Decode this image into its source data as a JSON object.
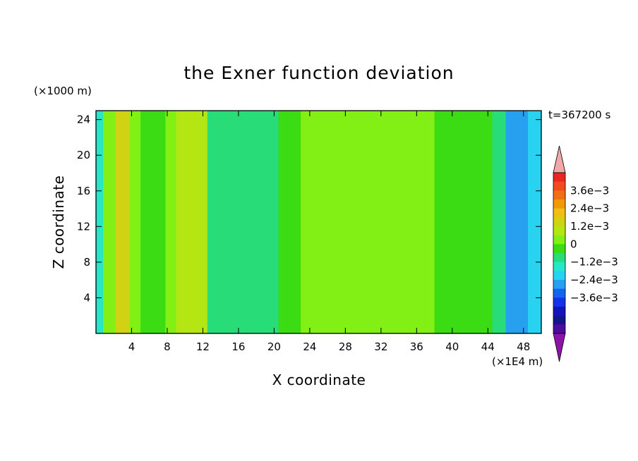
{
  "chart_data": {
    "type": "heatmap",
    "title": "the Exner function deviation",
    "time_label": "t=367200 s",
    "xlabel": "X coordinate",
    "ylabel": "Z coordinate",
    "x_unit": "(×1E4 m)",
    "y_unit": "(×1000 m)",
    "xlim": [
      0,
      50
    ],
    "ylim": [
      0,
      25
    ],
    "xticks": [
      4,
      8,
      12,
      16,
      20,
      24,
      28,
      32,
      36,
      40,
      44,
      48
    ],
    "yticks": [
      4,
      8,
      12,
      16,
      20,
      24
    ],
    "colorbar": {
      "labels": [
        {
          "level": 0.0036,
          "text": "3.6e−3"
        },
        {
          "level": 0.0024,
          "text": "2.4e−3"
        },
        {
          "level": 0.0012,
          "text": "1.2e−3"
        },
        {
          "level": 0,
          "text": "0"
        },
        {
          "level": -0.0012,
          "text": "−1.2e−3"
        },
        {
          "level": -0.0024,
          "text": "−2.4e−3"
        },
        {
          "level": -0.0036,
          "text": "−3.6e−3"
        }
      ],
      "upper_extend_color": "#f0a8a8",
      "lower_extend_color": "#8c14a8",
      "colors_top_to_bottom": [
        "#e8281e",
        "#f04a1e",
        "#f06e14",
        "#f09a0a",
        "#f0be14",
        "#d2d214",
        "#b4e614",
        "#82f014",
        "#3cdc14",
        "#28dc78",
        "#28e6c8",
        "#28d2f0",
        "#28a0f0",
        "#1464f0",
        "#1432e6",
        "#1414be",
        "#14148c",
        "#500aa0"
      ]
    },
    "field_by_x_band": [
      {
        "x_range": [
          0,
          0.8
        ],
        "value": -0.0016
      },
      {
        "x_range": [
          0.8,
          2.2
        ],
        "value": 0.0005
      },
      {
        "x_range": [
          2.2,
          3.8
        ],
        "value": 0.0013
      },
      {
        "x_range": [
          3.8,
          5.0
        ],
        "value": 0.0005
      },
      {
        "x_range": [
          5.0,
          6.2
        ],
        "value": -0.0005
      },
      {
        "x_range": [
          6.2,
          7.8
        ],
        "value": -0.0002
      },
      {
        "x_range": [
          7.8,
          9.0
        ],
        "value": 0.0001
      },
      {
        "x_range": [
          9.0,
          12.5
        ],
        "value": 0.0008
      },
      {
        "x_range": [
          12.5,
          18.0
        ],
        "value": -0.0007
      },
      {
        "x_range": [
          18.0,
          20.5
        ],
        "value": -0.0009
      },
      {
        "x_range": [
          20.5,
          23.0
        ],
        "value": -0.0003
      },
      {
        "x_range": [
          23.0,
          35.0
        ],
        "value": 0.0006
      },
      {
        "x_range": [
          35.0,
          38.0
        ],
        "value": 0.0002
      },
      {
        "x_range": [
          38.0,
          44.5
        ],
        "value": -0.0002
      },
      {
        "x_range": [
          44.5,
          46.0
        ],
        "value": -0.0006
      },
      {
        "x_range": [
          46.0,
          48.5
        ],
        "value": -0.0026
      },
      {
        "x_range": [
          48.5,
          50.0
        ],
        "value": -0.0018
      }
    ]
  }
}
